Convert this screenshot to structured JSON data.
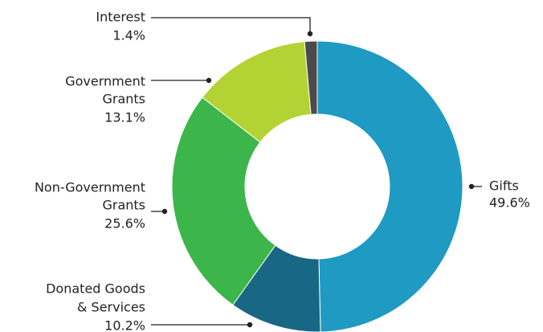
{
  "chart_data": {
    "type": "pie",
    "donut": true,
    "title": "",
    "unit": "%",
    "categories": [
      "Gifts",
      "Donated Goods & Services",
      "Non-Government Grants",
      "Government Grants",
      "Interest"
    ],
    "values": [
      49.6,
      10.2,
      25.6,
      13.1,
      1.4
    ],
    "colors": [
      "#1e9ac3",
      "#186785",
      "#3cb54b",
      "#b3d334",
      "#4b4b4b"
    ],
    "slice_order": "clockwise from 12 o'clock",
    "labels": [
      {
        "lines": [
          "Gifts"
        ],
        "value_text": "49.6%",
        "side": "right"
      },
      {
        "lines": [
          "Donated Goods",
          "& Services"
        ],
        "value_text": "10.2%",
        "side": "left"
      },
      {
        "lines": [
          "Non-Government",
          "Grants"
        ],
        "value_text": "25.6%",
        "side": "left"
      },
      {
        "lines": [
          "Government",
          "Grants"
        ],
        "value_text": "13.1%",
        "side": "left"
      },
      {
        "lines": [
          "Interest"
        ],
        "value_text": "1.4%",
        "side": "left"
      }
    ],
    "legend": "none, callout labels with leader lines"
  }
}
